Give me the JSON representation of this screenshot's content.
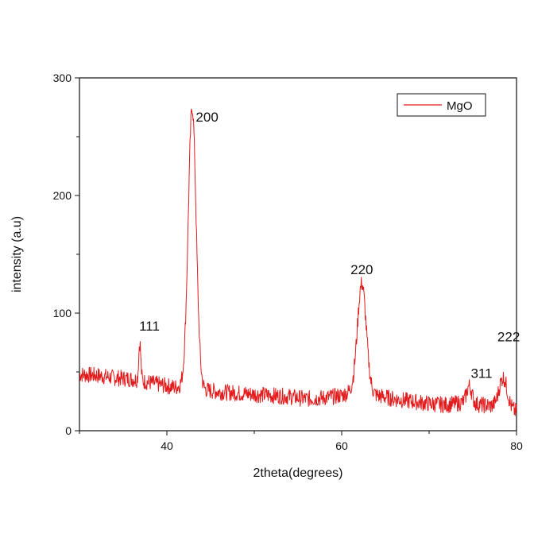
{
  "chart_data": {
    "type": "line",
    "title": "",
    "xlabel": "2theta(degrees)",
    "ylabel": "intensity (a.u)",
    "xlim": [
      30,
      80
    ],
    "ylim": [
      0,
      300
    ],
    "x_ticks": [
      40,
      60,
      80
    ],
    "y_ticks": [
      0,
      100,
      200,
      300
    ],
    "grid": false,
    "legend": {
      "position": "top-right",
      "entries": [
        "MgO"
      ]
    },
    "series": [
      {
        "name": "MgO",
        "color": "#e31a1c",
        "baseline_x": [
          30,
          32,
          34,
          36,
          38,
          40,
          41,
          42,
          44,
          46,
          48,
          50,
          52,
          54,
          56,
          58,
          60,
          61,
          63,
          64,
          66,
          68,
          70,
          72,
          74,
          76,
          77,
          78,
          80
        ],
        "baseline_y": [
          48,
          47,
          45,
          44,
          41,
          38,
          37,
          38,
          35,
          33,
          32,
          31,
          30,
          29,
          27,
          28,
          30,
          33,
          33,
          30,
          27,
          25,
          23,
          22,
          24,
          22,
          21,
          22,
          16
        ],
        "peaks": [
          {
            "x": 36.9,
            "y": 75,
            "width": 0.12
          },
          {
            "x": 42.9,
            "y": 275,
            "width": 0.45
          },
          {
            "x": 62.3,
            "y": 125,
            "width": 0.5
          },
          {
            "x": 74.6,
            "y": 38,
            "width": 0.3
          },
          {
            "x": 78.5,
            "y": 45,
            "width": 0.45
          }
        ],
        "noise": 7
      }
    ],
    "annotations": [
      {
        "text": "111",
        "x": 38.0,
        "y": 85
      },
      {
        "text": "200",
        "x": 44.6,
        "y": 263
      },
      {
        "text": "220",
        "x": 62.3,
        "y": 133
      },
      {
        "text": "311",
        "x": 76.0,
        "y": 45
      },
      {
        "text": "222",
        "x": 79.1,
        "y": 76
      }
    ]
  }
}
